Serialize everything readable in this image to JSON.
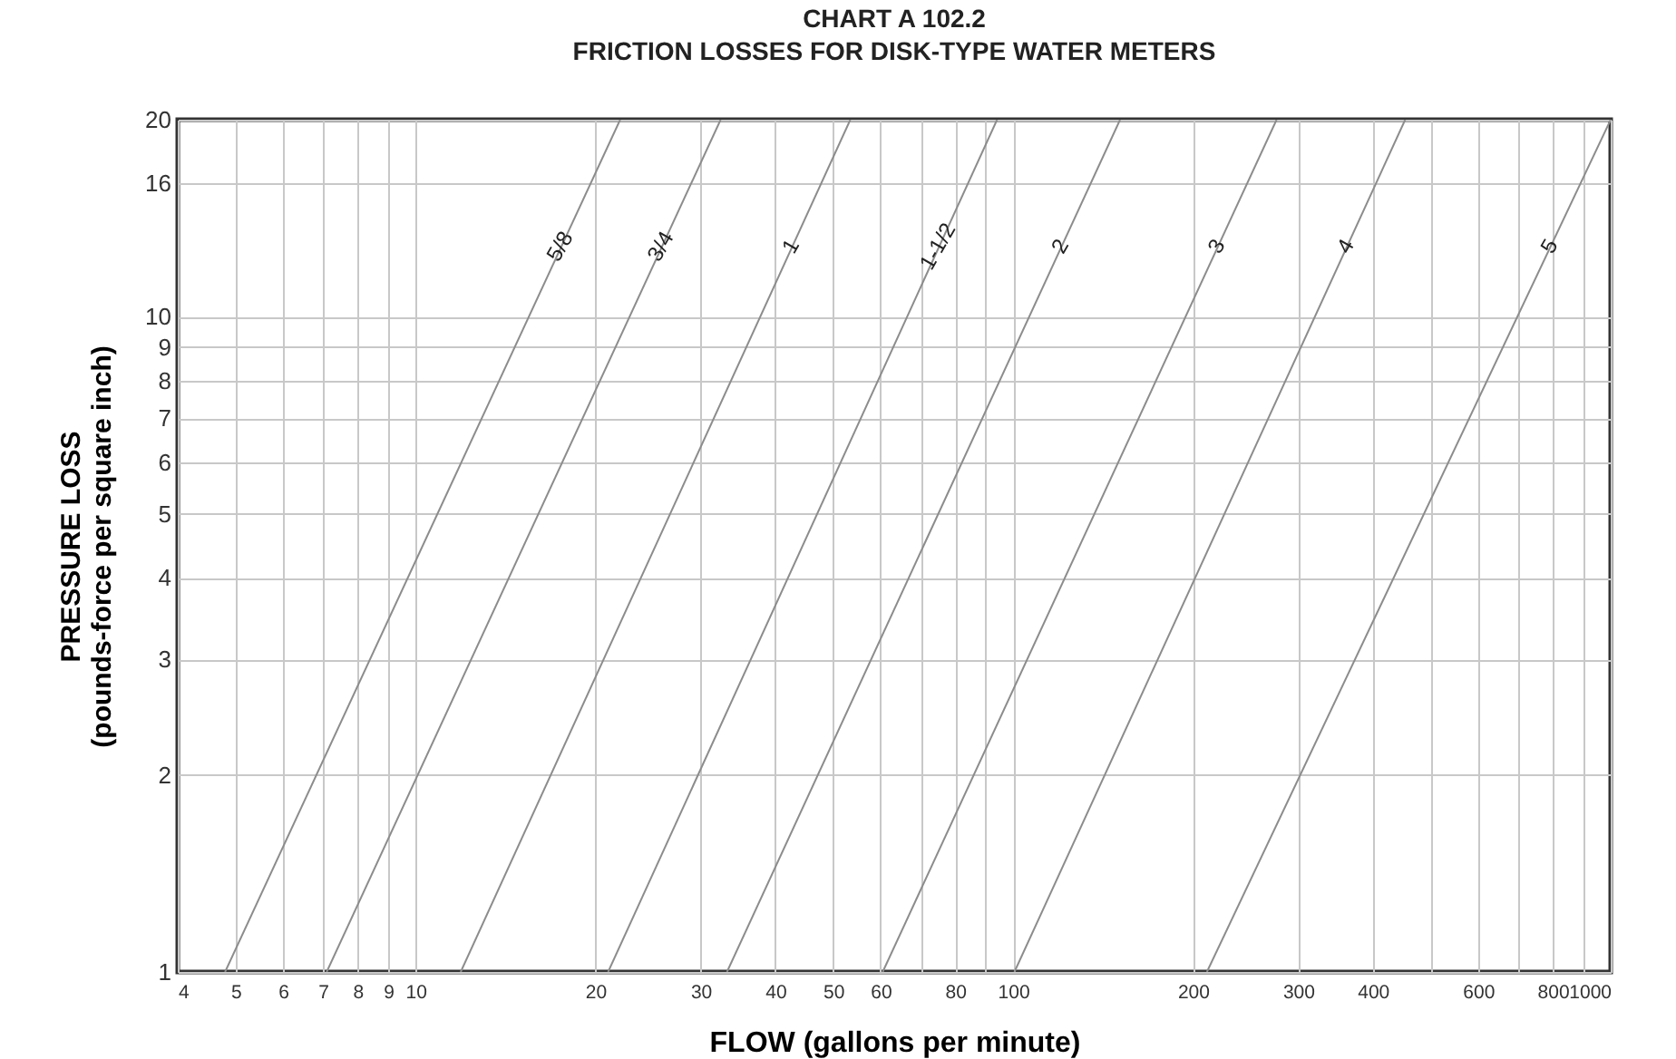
{
  "chart_data": {
    "type": "line",
    "title": "CHART A 102.2",
    "subtitle": "FRICTION LOSSES FOR DISK-TYPE WATER METERS",
    "xlabel": "FLOW (gallons per minute)",
    "ylabel": "PRESSURE LOSS\n(pounds-force per square inch)",
    "log": "xy",
    "grid": true,
    "legend": false,
    "marker": "none",
    "line_style": "solid",
    "xlim": [
      4,
      1000
    ],
    "ylim": [
      1,
      20
    ],
    "xticks": [
      4,
      5,
      6,
      7,
      8,
      9,
      10,
      20,
      30,
      40,
      50,
      60,
      {
        "value": 70,
        "label": null
      },
      80,
      {
        "value": 90,
        "label": null
      },
      100,
      200,
      300,
      400,
      {
        "value": 500,
        "label": null
      },
      600,
      {
        "value": 700,
        "label": null
      },
      800,
      {
        "value": 900,
        "label": null
      },
      1000
    ],
    "yticks": [
      1,
      2,
      3,
      4,
      5,
      6,
      7,
      8,
      9,
      10,
      16,
      20
    ],
    "series": [
      {
        "name": "5/8",
        "color": "#8c8c8c",
        "x": [
          4.8,
          22
        ],
        "values": [
          1,
          20
        ]
      },
      {
        "name": "3/4",
        "color": "#8c8c8c",
        "x": [
          7.1,
          32.4
        ],
        "values": [
          1,
          20
        ]
      },
      {
        "name": "1",
        "color": "#8c8c8c",
        "x": [
          11.9,
          53.4
        ],
        "values": [
          1,
          20
        ]
      },
      {
        "name": "1-1/2",
        "color": "#8c8c8c",
        "x": [
          21,
          94
        ],
        "values": [
          1,
          20
        ]
      },
      {
        "name": "2",
        "color": "#8c8c8c",
        "x": [
          33.2,
          151
        ],
        "values": [
          1,
          20
        ]
      },
      {
        "name": "3",
        "color": "#8c8c8c",
        "x": [
          60.5,
          276
        ],
        "values": [
          1,
          20
        ]
      },
      {
        "name": "4",
        "color": "#8c8c8c",
        "x": [
          100.5,
          453
        ],
        "values": [
          1,
          20
        ]
      },
      {
        "name": "5",
        "color": "#8c8c8c",
        "x": [
          211,
          1000
        ],
        "values": [
          1,
          20
        ]
      }
    ]
  }
}
